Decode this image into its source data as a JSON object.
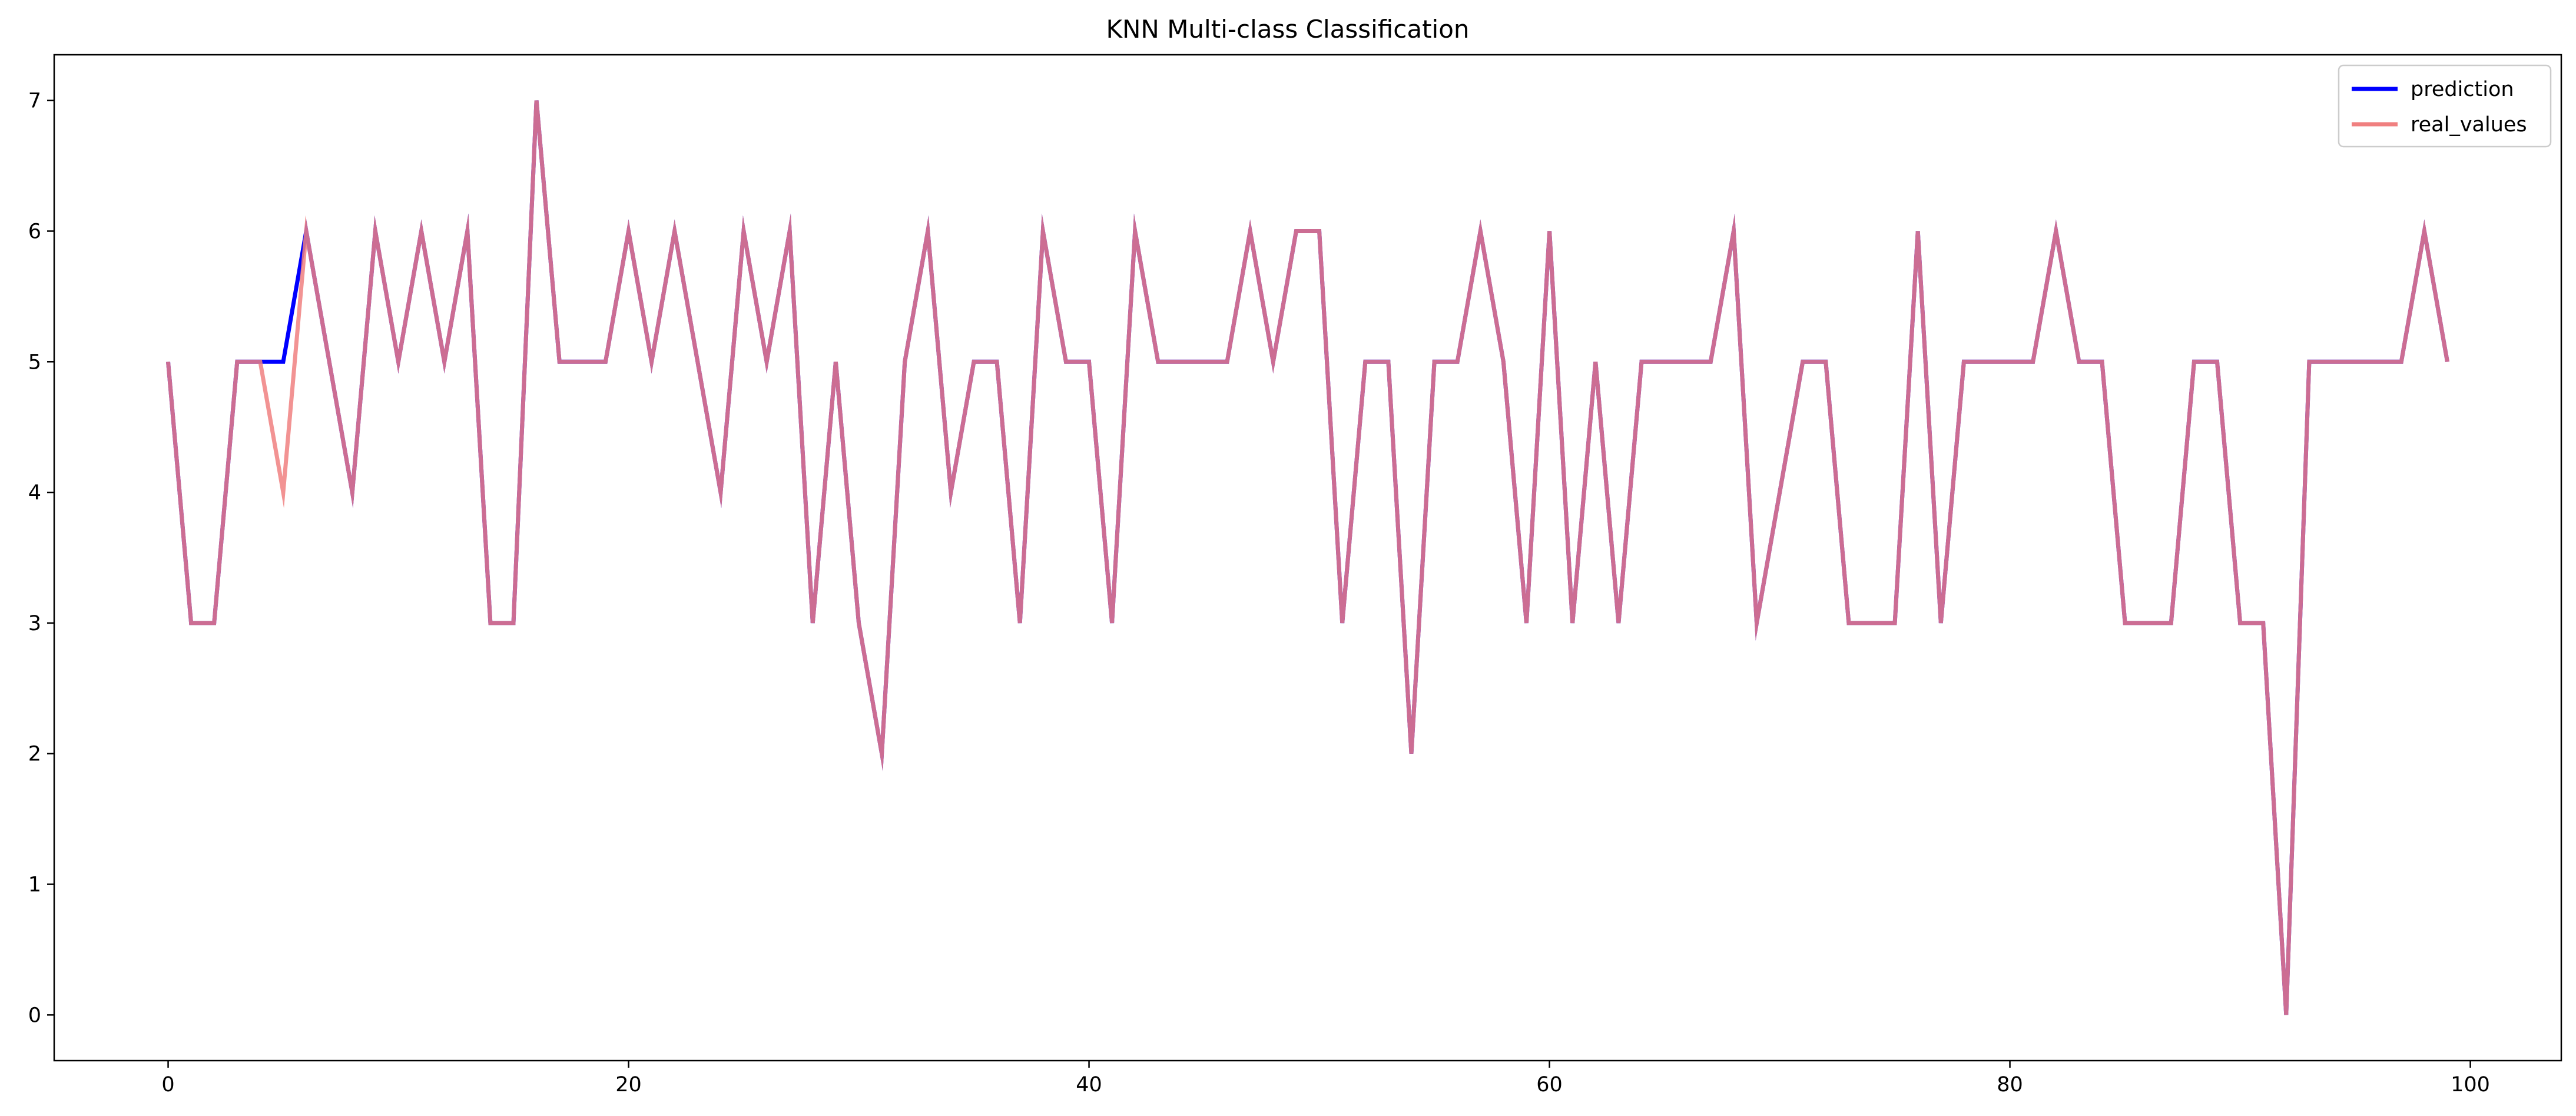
{
  "chart_data": {
    "type": "line",
    "title": "KNN Multi-class Classification",
    "xlabel": "",
    "ylabel": "",
    "xlim": [
      -4.95,
      103.95
    ],
    "ylim": [
      -0.35,
      7.35
    ],
    "xticks": [
      0,
      20,
      40,
      60,
      80,
      100
    ],
    "yticks": [
      0,
      1,
      2,
      3,
      4,
      5,
      6,
      7
    ],
    "grid": false,
    "legend_position": "top-right",
    "x": [
      0,
      1,
      2,
      3,
      4,
      5,
      6,
      7,
      8,
      9,
      10,
      11,
      12,
      13,
      14,
      15,
      16,
      17,
      18,
      19,
      20,
      21,
      22,
      23,
      24,
      25,
      26,
      27,
      28,
      29,
      30,
      31,
      32,
      33,
      34,
      35,
      36,
      37,
      38,
      39,
      40,
      41,
      42,
      43,
      44,
      45,
      46,
      47,
      48,
      49,
      50,
      51,
      52,
      53,
      54,
      55,
      56,
      57,
      58,
      59,
      60,
      61,
      62,
      63,
      64,
      65,
      66,
      67,
      68,
      69,
      70,
      71,
      72,
      73,
      74,
      75,
      76,
      77,
      78,
      79,
      80,
      81,
      82,
      83,
      84,
      85,
      86,
      87,
      88,
      89,
      90,
      91,
      92,
      93,
      94,
      95,
      96,
      97,
      98,
      99
    ],
    "series": [
      {
        "name": "prediction",
        "color": "#0000ff",
        "values": [
          5,
          3,
          3,
          5,
          5,
          5,
          6,
          5,
          4,
          6,
          5,
          6,
          5,
          6,
          3,
          3,
          7,
          5,
          5,
          5,
          6,
          5,
          6,
          5,
          4,
          6,
          5,
          6,
          3,
          5,
          3,
          2,
          5,
          6,
          4,
          5,
          5,
          3,
          6,
          5,
          5,
          3,
          6,
          5,
          5,
          5,
          5,
          6,
          5,
          6,
          6,
          3,
          5,
          5,
          2,
          5,
          5,
          6,
          5,
          3,
          6,
          3,
          5,
          3,
          5,
          5,
          5,
          5,
          6,
          3,
          4,
          5,
          5,
          3,
          3,
          3,
          6,
          3,
          5,
          5,
          5,
          5,
          6,
          5,
          5,
          3,
          3,
          3,
          5,
          5,
          3,
          3,
          0,
          5,
          5,
          5,
          5,
          5,
          6,
          5
        ]
      },
      {
        "name": "real_values",
        "color": "#f08080",
        "values": [
          5,
          3,
          3,
          5,
          5,
          4,
          6,
          5,
          4,
          6,
          5,
          6,
          5,
          6,
          3,
          3,
          7,
          5,
          5,
          5,
          6,
          5,
          6,
          5,
          4,
          6,
          5,
          6,
          3,
          5,
          3,
          2,
          5,
          6,
          4,
          5,
          5,
          3,
          6,
          5,
          5,
          3,
          6,
          5,
          5,
          5,
          5,
          6,
          5,
          6,
          6,
          3,
          5,
          5,
          2,
          5,
          5,
          6,
          5,
          3,
          6,
          3,
          5,
          3,
          5,
          5,
          5,
          5,
          6,
          3,
          4,
          5,
          5,
          3,
          3,
          3,
          6,
          3,
          5,
          5,
          5,
          5,
          6,
          5,
          5,
          3,
          3,
          3,
          5,
          5,
          3,
          3,
          0,
          5,
          5,
          5,
          5,
          5,
          6,
          5
        ]
      }
    ]
  }
}
